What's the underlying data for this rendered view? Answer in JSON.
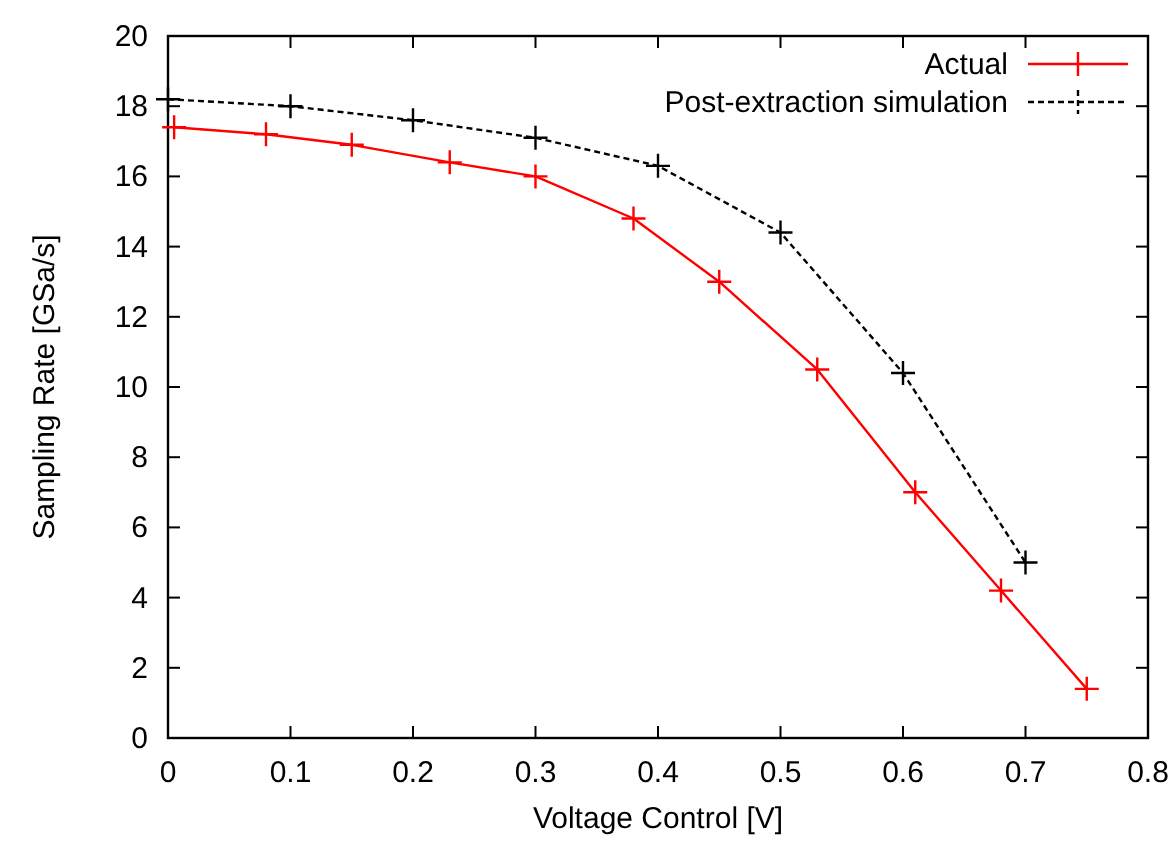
{
  "chart_data": {
    "type": "line",
    "xlabel": "Voltage Control [V]",
    "ylabel": "Sampling Rate [GSa/s]",
    "xlim": [
      0,
      0.8
    ],
    "xticks": [
      0,
      0.1,
      0.2,
      0.3,
      0.4,
      0.5,
      0.6,
      0.7,
      0.8
    ],
    "ylim": [
      0,
      20
    ],
    "yticks": [
      0,
      2,
      4,
      6,
      8,
      10,
      12,
      14,
      16,
      18,
      20
    ],
    "legend": "top right",
    "marker": "cross",
    "grid": false,
    "series": [
      {
        "name": "Actual",
        "color": "#ff0000",
        "line_style": "solid",
        "x": [
          0.005,
          0.08,
          0.15,
          0.23,
          0.3,
          0.38,
          0.45,
          0.53,
          0.61,
          0.68,
          0.75
        ],
        "values": [
          17.4,
          17.2,
          16.9,
          16.4,
          16.0,
          14.8,
          13.0,
          10.5,
          7.0,
          4.2,
          1.4
        ]
      },
      {
        "name": "Post-extraction simulation",
        "color": "#000000",
        "line_style": "dashed",
        "x": [
          0,
          0.1,
          0.2,
          0.3,
          0.4,
          0.5,
          0.6,
          0.7
        ],
        "values": [
          18.2,
          18.0,
          17.6,
          17.1,
          16.3,
          14.4,
          10.4,
          5.0
        ]
      }
    ]
  }
}
